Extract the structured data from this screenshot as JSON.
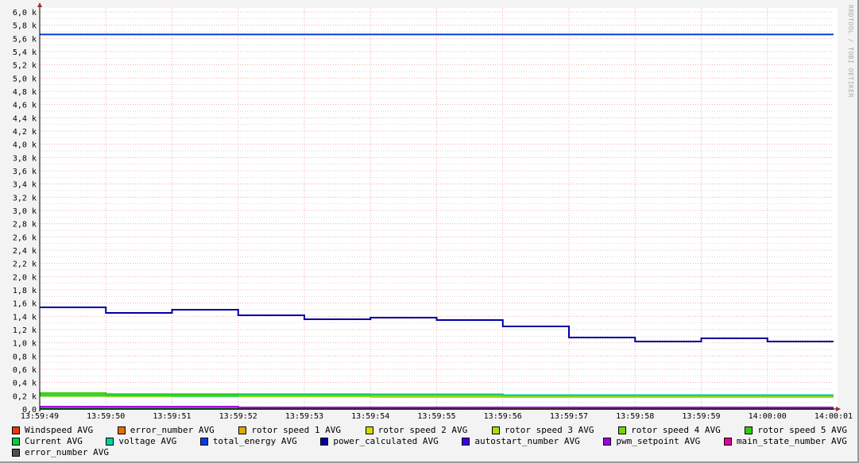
{
  "chart_data": {
    "type": "line",
    "step": true,
    "watermark": "RRDTOOL / TOBI OETIKER",
    "x_ticks": [
      "13:59:49",
      "13:59:50",
      "13:59:51",
      "13:59:52",
      "13:59:53",
      "13:59:54",
      "13:59:55",
      "13:59:56",
      "13:59:57",
      "13:59:58",
      "13:59:59",
      "14:00:00",
      "14:00:01"
    ],
    "y_ticks": [
      "0,0",
      "0,2 k",
      "0,4 k",
      "0,6 k",
      "0,8 k",
      "1,0 k",
      "1,2 k",
      "1,4 k",
      "1,6 k",
      "1,8 k",
      "2,0 k",
      "2,2 k",
      "2,4 k",
      "2,6 k",
      "2,8 k",
      "3,0 k",
      "3,2 k",
      "3,4 k",
      "3,6 k",
      "3,8 k",
      "4,0 k",
      "4,2 k",
      "4,4 k",
      "4,6 k",
      "4,8 k",
      "5,0 k",
      "5,2 k",
      "5,4 k",
      "5,6 k",
      "5,8 k",
      "6,0 k"
    ],
    "ylim": [
      0,
      6000
    ],
    "grid": true,
    "legend_position": "bottom",
    "series": [
      {
        "name": "Windspeed AVG",
        "color": "#e8380c",
        "values": [
          0,
          0,
          0,
          0,
          0,
          0,
          0,
          0,
          0,
          0,
          0,
          0
        ]
      },
      {
        "name": "error_number AVG",
        "color": "#e07000",
        "values": [
          0,
          0,
          0,
          0,
          0,
          0,
          0,
          0,
          0,
          0,
          0,
          0
        ]
      },
      {
        "name": "rotor speed 1 AVG",
        "color": "#e0a800",
        "values": [
          210,
          210,
          215,
          225,
          225,
          225,
          225,
          190,
          190,
          190,
          190,
          190
        ]
      },
      {
        "name": "rotor speed 2 AVG",
        "color": "#d8d800",
        "values": [
          200,
          200,
          200,
          200,
          200,
          190,
          190,
          190,
          190,
          190,
          190,
          190
        ]
      },
      {
        "name": "rotor speed 3 AVG",
        "color": "#a8e000",
        "values": [
          195,
          190,
          190,
          190,
          190,
          180,
          180,
          180,
          180,
          180,
          180,
          180
        ]
      },
      {
        "name": "rotor speed 4 AVG",
        "color": "#70d800",
        "values": [
          220,
          210,
          210,
          210,
          210,
          210,
          210,
          200,
          200,
          200,
          200,
          200
        ]
      },
      {
        "name": "rotor speed 5 AVG",
        "color": "#30d000",
        "values": [
          240,
          225,
          225,
          220,
          220,
          215,
          215,
          210,
          210,
          210,
          210,
          210
        ]
      },
      {
        "name": "Current AVG",
        "color": "#00d040",
        "values": [
          20,
          20,
          20,
          10,
          10,
          10,
          10,
          10,
          10,
          10,
          10,
          10
        ]
      },
      {
        "name": "voltage AVG",
        "color": "#00d0a0",
        "values": [
          205,
          205,
          200,
          210,
          210,
          210,
          210,
          210,
          210,
          210,
          210,
          210
        ]
      },
      {
        "name": "total_energy AVG",
        "color": "#0040e0",
        "values": [
          5660,
          5660,
          5660,
          5660,
          5660,
          5660,
          5660,
          5660,
          5660,
          5660,
          5660,
          5660
        ]
      },
      {
        "name": "power_calculated AVG",
        "color": "#0000a0",
        "values": [
          1536,
          1452,
          1500,
          1416,
          1356,
          1380,
          1344,
          1248,
          1080,
          1020,
          1068,
          1020
        ]
      },
      {
        "name": "autostart_number AVG",
        "color": "#4000e0",
        "values": [
          0,
          0,
          0,
          0,
          0,
          0,
          0,
          0,
          0,
          0,
          0,
          0
        ]
      },
      {
        "name": "pwm_setpoint AVG",
        "color": "#a000e0",
        "values": [
          36,
          36,
          36,
          24,
          24,
          24,
          24,
          24,
          24,
          24,
          24,
          24
        ]
      },
      {
        "name": "main_state_number AVG",
        "color": "#e000a0",
        "values": [
          0,
          0,
          0,
          0,
          0,
          0,
          0,
          12,
          0,
          0,
          0,
          0
        ]
      },
      {
        "name": "error_number AVG",
        "color": "#505050",
        "values": [
          0,
          0,
          0,
          0,
          0,
          0,
          0,
          0,
          0,
          0,
          0,
          0
        ]
      }
    ]
  }
}
